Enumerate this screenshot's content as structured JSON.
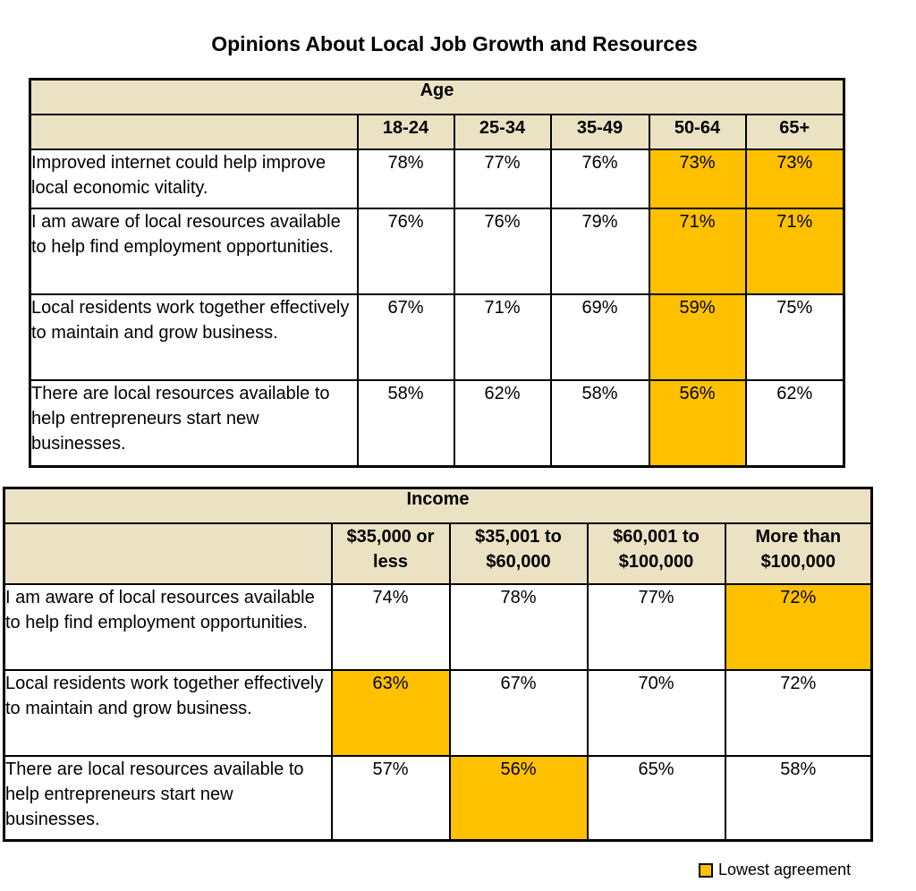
{
  "title": "Opinions About Local Job Growth and Resources",
  "colors": {
    "header_bg": "#ebe2c3",
    "lowest_highlight": "#ffc000"
  },
  "legend": {
    "label": "Lowest agreement",
    "icon": "orange-square-swatch"
  },
  "chart_data": [
    {
      "type": "table",
      "group_label": "Age",
      "columns": [
        "18-24",
        "25-34",
        "35-49",
        "50-64",
        "65+"
      ],
      "rows": [
        {
          "label": "Improved internet could help improve local economic vitality.",
          "values": [
            "78%",
            "77%",
            "76%",
            "73%",
            "73%"
          ],
          "lowest": [
            false,
            false,
            false,
            true,
            true
          ]
        },
        {
          "label": "I am aware of local resources available to help find employment opportunities.",
          "values": [
            "76%",
            "76%",
            "79%",
            "71%",
            "71%"
          ],
          "lowest": [
            false,
            false,
            false,
            true,
            true
          ]
        },
        {
          "label": "Local residents work together effectively to maintain and grow business.",
          "values": [
            "67%",
            "71%",
            "69%",
            "59%",
            "75%"
          ],
          "lowest": [
            false,
            false,
            false,
            true,
            false
          ]
        },
        {
          "label": "There are local resources available to help entrepreneurs start new businesses.",
          "values": [
            "58%",
            "62%",
            "58%",
            "56%",
            "62%"
          ],
          "lowest": [
            false,
            false,
            false,
            true,
            false
          ]
        }
      ]
    },
    {
      "type": "table",
      "group_label": "Income",
      "columns": [
        "$35,000 or less",
        "$35,001 to $60,000",
        "$60,001 to $100,000",
        "More than $100,000"
      ],
      "rows": [
        {
          "label": "I am aware of local resources available to help find employment opportunities.",
          "values": [
            "74%",
            "78%",
            "77%",
            "72%"
          ],
          "lowest": [
            false,
            false,
            false,
            true
          ]
        },
        {
          "label": "Local residents work together effectively to maintain and grow business.",
          "values": [
            "63%",
            "67%",
            "70%",
            "72%"
          ],
          "lowest": [
            true,
            false,
            false,
            false
          ]
        },
        {
          "label": "There are local resources available to help entrepreneurs start new businesses.",
          "values": [
            "57%",
            "56%",
            "65%",
            "58%"
          ],
          "lowest": [
            false,
            true,
            false,
            false
          ]
        }
      ]
    }
  ]
}
